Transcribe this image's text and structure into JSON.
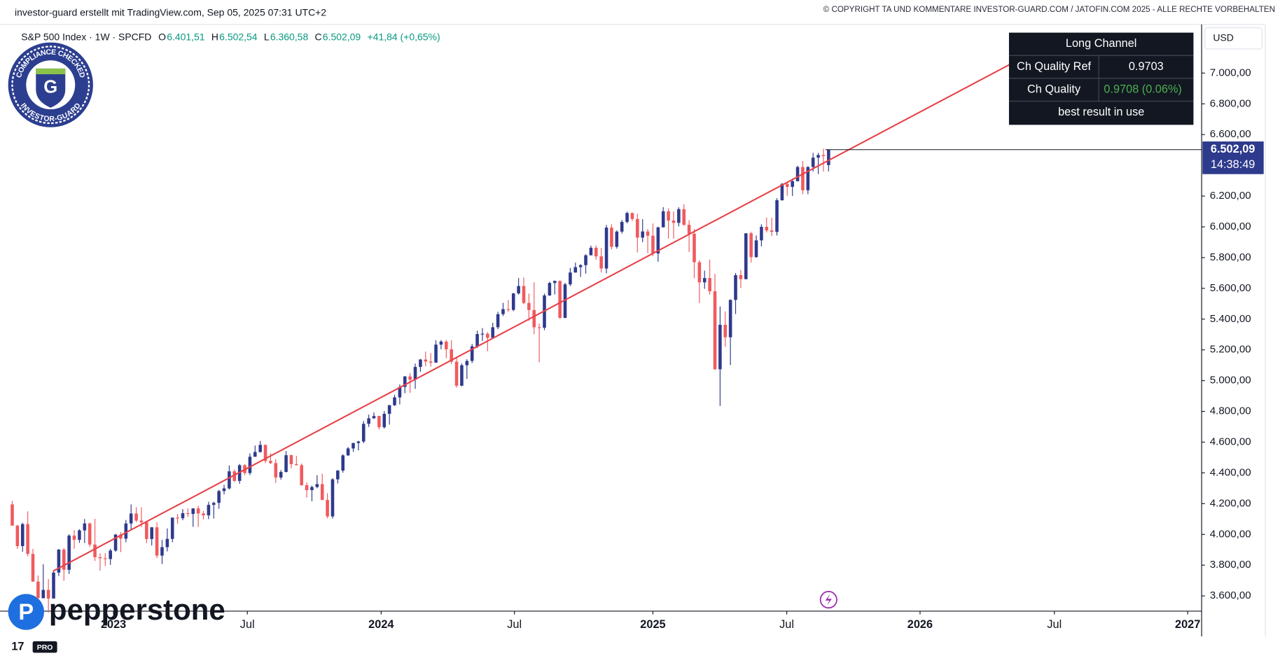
{
  "header": {
    "attribution": "investor-guard erstellt mit TradingView.com, Sep 05, 2025 07:31 UTC+2",
    "copyright": "© COPYRIGHT TA UND KOMMENTARE INVESTOR-GUARD.COM / JATOFIN.COM 2025 - ALLE RECHTE VORBEHALTEN"
  },
  "legend": {
    "symbol": "S&P 500 Index · 1W · SPCFD",
    "o_key": "O",
    "o": "6.401,51",
    "h_key": "H",
    "h": "6.502,54",
    "l_key": "L",
    "l": "6.360,58",
    "c_key": "C",
    "c": "6.502,09",
    "change": "+41,84 (+0,65%)"
  },
  "currency": "USD",
  "badge": {
    "top": "COMPLIANCE CHECKED",
    "bottom": "INVESTOR-GUARD",
    "letter": "G"
  },
  "broker": "pepperstone",
  "tv": "PRO",
  "table": {
    "title": "Long Channel",
    "rows": [
      [
        "Ch Quality Ref",
        "0.9703"
      ],
      [
        "Ch Quality",
        "0.9708 (0.06%)"
      ]
    ],
    "footer": "best result in use"
  },
  "chart_data": {
    "type": "candlestick",
    "up_color": "#2e3a8c",
    "down_color": "#f05a5e",
    "channel_color": "#e8424a",
    "xlim": [
      -2.37,
      230.2
    ],
    "xticks": [
      {
        "value": 19.6,
        "label": "2023"
      },
      {
        "value": 45.5,
        "label": "Jul"
      },
      {
        "value": 71.4,
        "label": "2024"
      },
      {
        "value": 97.2,
        "label": "Jul"
      },
      {
        "value": 124,
        "label": "2025"
      },
      {
        "value": 149.9,
        "label": "Jul"
      },
      {
        "value": 175.7,
        "label": "2026"
      },
      {
        "value": 201.7,
        "label": "Jul"
      },
      {
        "value": 227.5,
        "label": "2027"
      }
    ],
    "ylim": [
      3501,
      7316
    ],
    "yticks": [
      {
        "value": 3600,
        "label": "3.600,00"
      },
      {
        "value": 3800,
        "label": "3.800,00"
      },
      {
        "value": 4000,
        "label": "4.000,00"
      },
      {
        "value": 4200,
        "label": "4.200,00"
      },
      {
        "value": 4400,
        "label": "4.400,00"
      },
      {
        "value": 4600,
        "label": "4.600,00"
      },
      {
        "value": 4800,
        "label": "4.800,00"
      },
      {
        "value": 5000,
        "label": "5.000,00"
      },
      {
        "value": 5200,
        "label": "5.200,00"
      },
      {
        "value": 5400,
        "label": "5.400,00"
      },
      {
        "value": 5600,
        "label": "5.600,00"
      },
      {
        "value": 5800,
        "label": "5.800,00"
      },
      {
        "value": 6000,
        "label": "6.000,00"
      },
      {
        "value": 6200,
        "label": "6.200,00"
      },
      {
        "value": 6600,
        "label": "6.600,00"
      },
      {
        "value": 6800,
        "label": "6.800,00"
      },
      {
        "value": 7000,
        "label": "7.000,00"
      }
    ],
    "last_price": {
      "label": "6.502,09",
      "countdown": "14:38:49"
    },
    "channel": {
      "x": [
        7.9,
        203.8
      ],
      "y": [
        3761,
        7247
      ]
    },
    "ohlc": [
      [
        4195,
        4218,
        4057,
        4057
      ],
      [
        4057,
        4062,
        3906,
        3924
      ],
      [
        3924,
        4076,
        3887,
        4067
      ],
      [
        4067,
        4150,
        3858,
        3873
      ],
      [
        3873,
        3906,
        3693,
        3693
      ],
      [
        3693,
        3733,
        3584,
        3585
      ],
      [
        3585,
        3806,
        3585,
        3639
      ],
      [
        3639,
        3709,
        3491,
        3583
      ],
      [
        3583,
        3762,
        3591,
        3752
      ],
      [
        3752,
        3905,
        3730,
        3901
      ],
      [
        3901,
        3911,
        3698,
        3770
      ],
      [
        3770,
        4001,
        3743,
        3992
      ],
      [
        3992,
        4028,
        3906,
        3965
      ],
      [
        3965,
        4034,
        3945,
        4026
      ],
      [
        4026,
        4100,
        3944,
        4071
      ],
      [
        4071,
        4077,
        3918,
        3934
      ],
      [
        3934,
        4101,
        3827,
        3852
      ],
      [
        3852,
        3877,
        3764,
        3845
      ],
      [
        3845,
        3878,
        3795,
        3840
      ],
      [
        3840,
        3906,
        3802,
        3895
      ],
      [
        3895,
        4003,
        3887,
        3999
      ],
      [
        3999,
        4016,
        3885,
        3972
      ],
      [
        3972,
        4094,
        3949,
        4071
      ],
      [
        4071,
        4195,
        4031,
        4136
      ],
      [
        4136,
        4176,
        4080,
        4090
      ],
      [
        4090,
        4176,
        4047,
        4079
      ],
      [
        4079,
        4086,
        3943,
        3970
      ],
      [
        3970,
        4048,
        3928,
        4046
      ],
      [
        4046,
        4078,
        3846,
        3862
      ],
      [
        3862,
        3964,
        3808,
        3917
      ],
      [
        3917,
        4039,
        3889,
        3971
      ],
      [
        3971,
        4110,
        3949,
        4109
      ],
      [
        4109,
        4133,
        4069,
        4105
      ],
      [
        4105,
        4164,
        4092,
        4138
      ],
      [
        4138,
        4169,
        4113,
        4133
      ],
      [
        4133,
        4170,
        4049,
        4169
      ],
      [
        4169,
        4186,
        4048,
        4136
      ],
      [
        4136,
        4154,
        4098,
        4124
      ],
      [
        4124,
        4212,
        4099,
        4192
      ],
      [
        4192,
        4212,
        4103,
        4205
      ],
      [
        4205,
        4290,
        4167,
        4282
      ],
      [
        4282,
        4322,
        4260,
        4299
      ],
      [
        4299,
        4448,
        4292,
        4410
      ],
      [
        4410,
        4422,
        4341,
        4348
      ],
      [
        4348,
        4458,
        4329,
        4450
      ],
      [
        4450,
        4456,
        4385,
        4399
      ],
      [
        4399,
        4527,
        4386,
        4505
      ],
      [
        4505,
        4578,
        4504,
        4536
      ],
      [
        4536,
        4608,
        4532,
        4582
      ],
      [
        4582,
        4584,
        4464,
        4478
      ],
      [
        4478,
        4527,
        4457,
        4464
      ],
      [
        4464,
        4490,
        4335,
        4370
      ],
      [
        4370,
        4418,
        4356,
        4406
      ],
      [
        4406,
        4542,
        4403,
        4515
      ],
      [
        4515,
        4520,
        4430,
        4457
      ],
      [
        4457,
        4511,
        4449,
        4450
      ],
      [
        4450,
        4461,
        4316,
        4320
      ],
      [
        4320,
        4338,
        4239,
        4288
      ],
      [
        4288,
        4317,
        4216,
        4308
      ],
      [
        4308,
        4385,
        4300,
        4327
      ],
      [
        4327,
        4394,
        4222,
        4224
      ],
      [
        4224,
        4268,
        4104,
        4117
      ],
      [
        4117,
        4366,
        4103,
        4358
      ],
      [
        4358,
        4418,
        4331,
        4415
      ],
      [
        4415,
        4521,
        4401,
        4514
      ],
      [
        4514,
        4568,
        4511,
        4559
      ],
      [
        4559,
        4596,
        4537,
        4594
      ],
      [
        4594,
        4609,
        4546,
        4604
      ],
      [
        4604,
        4738,
        4593,
        4719
      ],
      [
        4719,
        4779,
        4699,
        4755
      ],
      [
        4755,
        4793,
        4751,
        4770
      ],
      [
        4770,
        4772,
        4682,
        4697
      ],
      [
        4697,
        4802,
        4688,
        4784
      ],
      [
        4784,
        4842,
        4714,
        4840
      ],
      [
        4840,
        4907,
        4835,
        4891
      ],
      [
        4891,
        4975,
        4845,
        4959
      ],
      [
        4959,
        5030,
        4918,
        5027
      ],
      [
        5027,
        5048,
        4920,
        5006
      ],
      [
        5006,
        5111,
        4946,
        5089
      ],
      [
        5089,
        5141,
        5057,
        5137
      ],
      [
        5137,
        5189,
        5094,
        5124
      ],
      [
        5124,
        5179,
        5092,
        5117
      ],
      [
        5117,
        5262,
        5117,
        5234
      ],
      [
        5234,
        5264,
        5204,
        5254
      ],
      [
        5254,
        5264,
        5146,
        5204
      ],
      [
        5204,
        5263,
        5107,
        5123
      ],
      [
        5123,
        5150,
        4954,
        4967
      ],
      [
        4967,
        5111,
        4963,
        5100
      ],
      [
        5100,
        5139,
        5011,
        5128
      ],
      [
        5128,
        5239,
        5114,
        5223
      ],
      [
        5223,
        5325,
        5212,
        5303
      ],
      [
        5303,
        5342,
        5257,
        5305
      ],
      [
        5305,
        5315,
        5191,
        5278
      ],
      [
        5278,
        5376,
        5270,
        5347
      ],
      [
        5347,
        5448,
        5334,
        5432
      ],
      [
        5432,
        5506,
        5420,
        5465
      ],
      [
        5465,
        5524,
        5447,
        5460
      ],
      [
        5460,
        5570,
        5452,
        5567
      ],
      [
        5567,
        5667,
        5560,
        5615
      ],
      [
        5615,
        5670,
        5497,
        5505
      ],
      [
        5505,
        5566,
        5390,
        5459
      ],
      [
        5459,
        5639,
        5302,
        5347
      ],
      [
        5347,
        5371,
        5119,
        5344
      ],
      [
        5344,
        5566,
        5328,
        5554
      ],
      [
        5554,
        5643,
        5551,
        5635
      ],
      [
        5635,
        5651,
        5560,
        5648
      ],
      [
        5648,
        5651,
        5402,
        5408
      ],
      [
        5408,
        5636,
        5406,
        5626
      ],
      [
        5626,
        5733,
        5615,
        5703
      ],
      [
        5703,
        5767,
        5702,
        5738
      ],
      [
        5738,
        5757,
        5674,
        5751
      ],
      [
        5751,
        5822,
        5696,
        5815
      ],
      [
        5815,
        5878,
        5815,
        5864
      ],
      [
        5864,
        5878,
        5787,
        5808
      ],
      [
        5808,
        5863,
        5703,
        5729
      ],
      [
        5729,
        6012,
        5697,
        5995
      ],
      [
        5995,
        6017,
        5853,
        5870
      ],
      [
        5870,
        5977,
        5858,
        5969
      ],
      [
        5969,
        6044,
        5956,
        6032
      ],
      [
        6032,
        6099,
        6023,
        6090
      ],
      [
        6090,
        6093,
        6038,
        6051
      ],
      [
        6051,
        6085,
        5833,
        5930
      ],
      [
        5930,
        6050,
        5900,
        5970
      ],
      [
        5970,
        5986,
        5829,
        5942
      ],
      [
        5942,
        6022,
        5809,
        5827
      ],
      [
        5827,
        6000,
        5773,
        5997
      ],
      [
        5997,
        6128,
        5996,
        6101
      ],
      [
        6101,
        6120,
        5923,
        6041
      ],
      [
        6041,
        6101,
        5923,
        6026
      ],
      [
        6026,
        6127,
        6003,
        6115
      ],
      [
        6115,
        6147,
        6008,
        6013
      ],
      [
        6013,
        6043,
        5837,
        5955
      ],
      [
        5955,
        5986,
        5666,
        5770
      ],
      [
        5770,
        5783,
        5505,
        5639
      ],
      [
        5639,
        5715,
        5597,
        5667
      ],
      [
        5667,
        5787,
        5559,
        5581
      ],
      [
        5581,
        5695,
        5069,
        5074
      ],
      [
        5074,
        5482,
        4835,
        5363
      ],
      [
        5363,
        5450,
        5220,
        5282
      ],
      [
        5282,
        5528,
        5101,
        5525
      ],
      [
        5525,
        5700,
        5433,
        5686
      ],
      [
        5686,
        5720,
        5602,
        5660
      ],
      [
        5660,
        5959,
        5658,
        5958
      ],
      [
        5958,
        5968,
        5767,
        5803
      ],
      [
        5803,
        5944,
        5799,
        5912
      ],
      [
        5912,
        6017,
        5873,
        6000
      ],
      [
        6000,
        6060,
        5963,
        5977
      ],
      [
        5977,
        6059,
        5940,
        5967
      ],
      [
        5967,
        6187,
        5944,
        6173
      ],
      [
        6173,
        6285,
        6170,
        6279
      ],
      [
        6279,
        6290,
        6202,
        6260
      ],
      [
        6260,
        6315,
        6201,
        6297
      ],
      [
        6297,
        6397,
        6295,
        6389
      ],
      [
        6389,
        6428,
        6212,
        6238
      ],
      [
        6238,
        6395,
        6212,
        6389
      ],
      [
        6389,
        6481,
        6360,
        6450
      ],
      [
        6450,
        6481,
        6343,
        6467
      ],
      [
        6467,
        6508,
        6360,
        6460
      ],
      [
        6401.51,
        6502.54,
        6360.58,
        6502.09
      ]
    ]
  }
}
